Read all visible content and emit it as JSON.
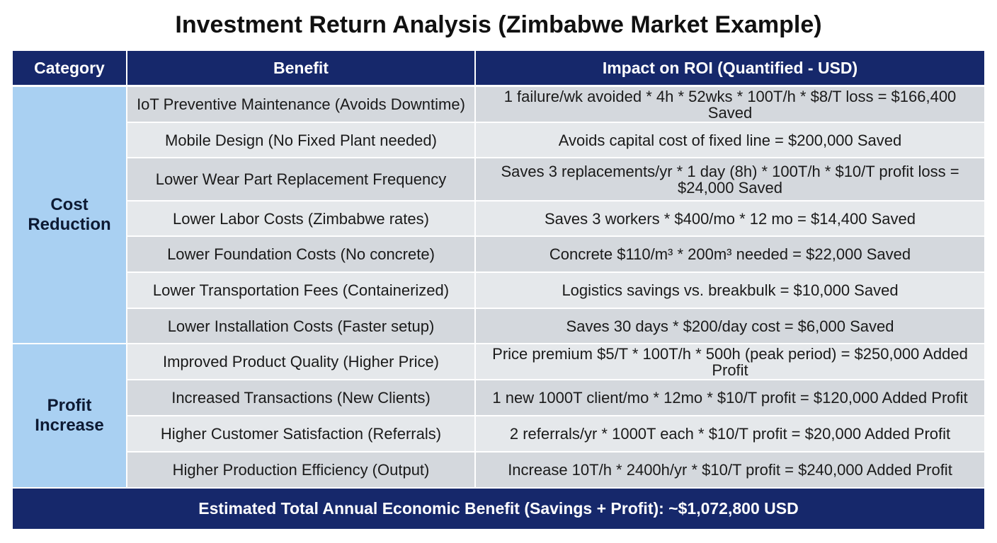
{
  "title": "Investment Return Analysis (Zimbabwe Market Example)",
  "table": {
    "headers": [
      "Category",
      "Benefit",
      "Impact on ROI (Quantified - USD)"
    ],
    "groups": [
      {
        "category": "Cost Reduction",
        "rows": [
          [
            "IoT Preventive Maintenance (Avoids Downtime)",
            "1 failure/wk avoided * 4h * 52wks * 100T/h * $8/T loss = $166,400 Saved"
          ],
          [
            "Mobile Design (No Fixed Plant needed)",
            "Avoids capital cost of fixed line = $200,000 Saved"
          ],
          [
            "Lower Wear Part Replacement Frequency",
            "Saves 3 replacements/yr * 1 day (8h) * 100T/h * $10/T profit loss = $24,000 Saved"
          ],
          [
            "Lower Labor Costs (Zimbabwe rates)",
            "Saves 3 workers * $400/mo * 12 mo = $14,400 Saved"
          ],
          [
            "Lower Foundation Costs (No concrete)",
            "Concrete $110/m³ * 200m³ needed = $22,000 Saved"
          ],
          [
            "Lower Transportation Fees (Containerized)",
            "Logistics savings vs. breakbulk = $10,000 Saved"
          ],
          [
            "Lower Installation Costs (Faster setup)",
            "Saves 30 days * $200/day cost = $6,000 Saved"
          ]
        ]
      },
      {
        "category": "Profit Increase",
        "rows": [
          [
            "Improved Product Quality (Higher Price)",
            "Price premium $5/T * 100T/h * 500h (peak period) = $250,000 Added Profit"
          ],
          [
            "Increased Transactions (New Clients)",
            "1 new 1000T client/mo * 12mo * $10/T profit = $120,000 Added Profit"
          ],
          [
            "Higher Customer Satisfaction (Referrals)",
            "2 referrals/yr * 1000T each * $10/T profit = $20,000 Added Profit"
          ],
          [
            "Higher Production Efficiency (Output)",
            "Increase 10T/h * 2400h/yr * $10/T profit = $240,000 Added Profit"
          ]
        ]
      }
    ],
    "footer": "Estimated Total Annual Economic Benefit (Savings + Profit): ~$1,072,800 USD"
  }
}
